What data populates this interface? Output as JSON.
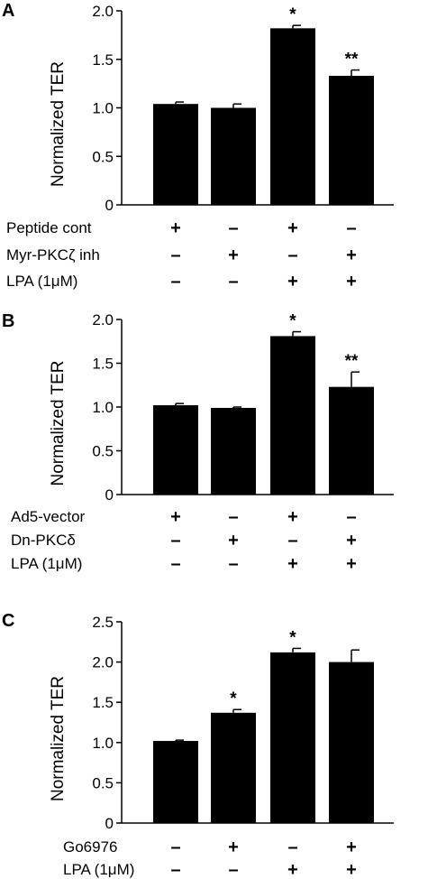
{
  "chart_data": [
    {
      "type": "bar",
      "panel": "A",
      "ylabel": "Normalized TER",
      "ylim": [
        0,
        2.0
      ],
      "yticks": [
        "0",
        "0.5",
        "1.0",
        "1.5",
        "2.0"
      ],
      "values": [
        1.04,
        1.0,
        1.82,
        1.33
      ],
      "errors": [
        0.02,
        0.04,
        0.03,
        0.06
      ],
      "annotations": [
        "",
        "",
        "*",
        "**"
      ],
      "conditions": [
        {
          "label": "Peptide cont",
          "signs": [
            "+",
            "–",
            "+",
            "–"
          ]
        },
        {
          "label": "Myr-PKCζ inh",
          "signs": [
            "–",
            "+",
            "–",
            "+"
          ]
        },
        {
          "label": "LPA (1μM)",
          "signs": [
            "–",
            "–",
            "+",
            "+"
          ]
        }
      ]
    },
    {
      "type": "bar",
      "panel": "B",
      "ylabel": "Normalized TER",
      "ylim": [
        0,
        2.0
      ],
      "yticks": [
        "0",
        "0.5",
        "1.0",
        "1.5",
        "2.0"
      ],
      "values": [
        1.02,
        0.99,
        1.81,
        1.23
      ],
      "errors": [
        0.02,
        0.01,
        0.05,
        0.17
      ],
      "annotations": [
        "",
        "",
        "*",
        "**"
      ],
      "conditions": [
        {
          "label": "Ad5-vector",
          "signs": [
            "+",
            "–",
            "+",
            "–"
          ]
        },
        {
          "label": "Dn-PKCδ",
          "signs": [
            "–",
            "+",
            "–",
            "+"
          ]
        },
        {
          "label": "LPA (1μM)",
          "signs": [
            "–",
            "–",
            "+",
            "+"
          ]
        }
      ]
    },
    {
      "type": "bar",
      "panel": "C",
      "ylabel": "Normalized TER",
      "ylim": [
        0,
        2.5
      ],
      "yticks": [
        "0",
        "0.5",
        "1.0",
        "1.5",
        "2.0",
        "2.5"
      ],
      "values": [
        1.02,
        1.37,
        2.12,
        2.0
      ],
      "errors": [
        0.01,
        0.04,
        0.05,
        0.15
      ],
      "annotations": [
        "",
        "*",
        "*",
        ""
      ],
      "conditions": [
        {
          "label": "Go6976",
          "signs": [
            "–",
            "+",
            "–",
            "+"
          ]
        },
        {
          "label": "LPA (1μM)",
          "signs": [
            "–",
            "–",
            "+",
            "+"
          ]
        }
      ]
    }
  ]
}
